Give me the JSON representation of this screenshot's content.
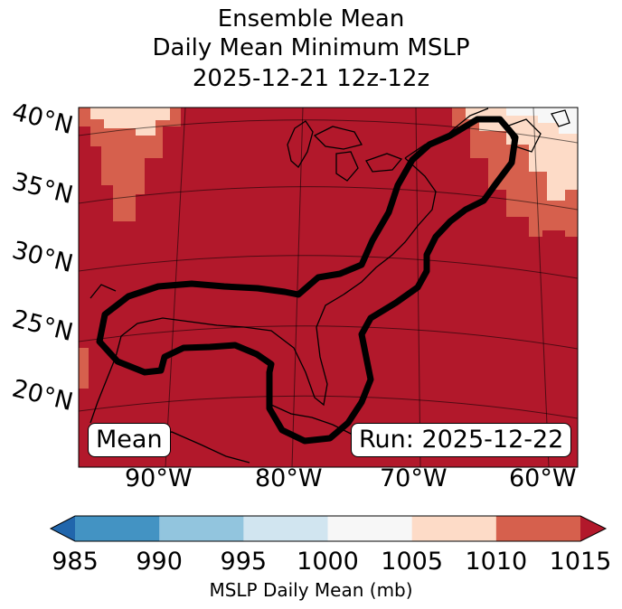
{
  "title": {
    "line1": "Ensemble Mean",
    "line2": "Daily Mean Minimum MSLP",
    "line3": "2025-12-21 12z-12z"
  },
  "map": {
    "lat_labels": [
      "40°N",
      "35°N",
      "30°N",
      "25°N",
      "20°N"
    ],
    "lon_labels": [
      "90°W",
      "80°W",
      "70°W",
      "60°W"
    ],
    "inset_left": "Mean",
    "inset_right": "Run: 2025-12-22",
    "background_color": "#b2182b",
    "contour_color": "#000000"
  },
  "colorbar": {
    "ticks": [
      "985",
      "990",
      "995",
      "1000",
      "1005",
      "1010",
      "1015"
    ],
    "colors": [
      "#2166ac",
      "#4393c3",
      "#92c5de",
      "#d1e5f0",
      "#f7f7f7",
      "#fddbc7",
      "#d6604d",
      "#b2182b"
    ],
    "label": "MSLP Daily Mean (mb)"
  }
}
